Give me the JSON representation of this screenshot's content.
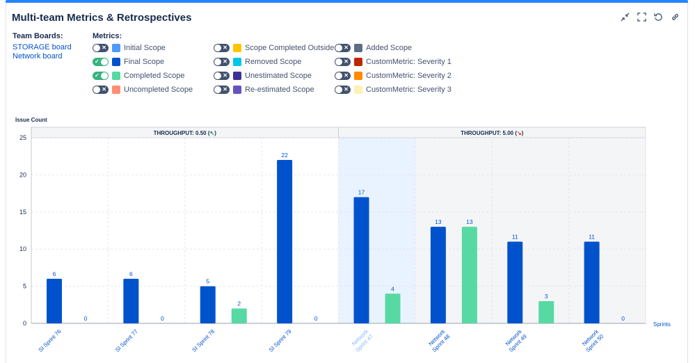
{
  "header": {
    "title": "Multi-team Metrics & Retrospectives"
  },
  "actions": [
    "collapse-icon",
    "fullscreen-icon",
    "refresh-icon",
    "link-icon"
  ],
  "team_boards": {
    "label": "Team Boards:",
    "items": [
      "STORAGE board",
      "Network board"
    ]
  },
  "metrics": {
    "label": "Metrics:",
    "items": [
      {
        "label": "Initial Scope",
        "on": false,
        "color": "#4c9aff"
      },
      {
        "label": "Final Scope",
        "on": true,
        "color": "#0052cc"
      },
      {
        "label": "Completed Scope",
        "on": true,
        "color": "#57d9a3"
      },
      {
        "label": "Uncompleted Scope",
        "on": false,
        "color": "#ff8f73"
      },
      {
        "label": "Scope Completed Outside",
        "on": false,
        "color": "#ffc400"
      },
      {
        "label": "Removed Scope",
        "on": false,
        "color": "#00c7e6"
      },
      {
        "label": "Unestimated Scope",
        "on": false,
        "color": "#403294"
      },
      {
        "label": "Re-estimated Scope",
        "on": false,
        "color": "#6554c0"
      },
      {
        "label": "Added Scope",
        "on": false,
        "color": "#5e6c84"
      },
      {
        "label": "CustomMetric: Severity 1",
        "on": false,
        "color": "#bf2600"
      },
      {
        "label": "CustomMetric: Severity 2",
        "on": false,
        "color": "#ff8b00"
      },
      {
        "label": "CustomMetric: Severity 3",
        "on": false,
        "color": "#fff0b3"
      }
    ]
  },
  "chart_data": {
    "type": "bar",
    "ylabel": "Issue Count",
    "xlabel": "Sprints",
    "ylim": [
      0,
      25
    ],
    "yticks": [
      0,
      5,
      10,
      15,
      20,
      25
    ],
    "grid": true,
    "categories": [
      "SI Sprint 76",
      "SI Sprint 77",
      "SI Sprint 78",
      "SI Sprint 79",
      "Network Sprint 47",
      "Network Sprint 48",
      "Network Sprint 49",
      "Network Sprint 50"
    ],
    "series": [
      {
        "name": "Final Scope",
        "color": "#0052cc",
        "values": [
          6,
          6,
          5,
          22,
          17,
          13,
          11,
          11
        ]
      },
      {
        "name": "Completed Scope",
        "color": "#57d9a3",
        "values": [
          0,
          0,
          2,
          0,
          4,
          13,
          3,
          0
        ]
      }
    ],
    "groups": [
      {
        "label": "THROUGHPUT: 0.50",
        "arrow": "↖",
        "arrow_color": "#00875a",
        "start": 0,
        "end": 3
      },
      {
        "label": "THROUGHPUT: 5.00",
        "arrow": "↘",
        "arrow_color": "#de350b",
        "start": 4,
        "end": 7
      }
    ],
    "highlighted_category": 4
  }
}
